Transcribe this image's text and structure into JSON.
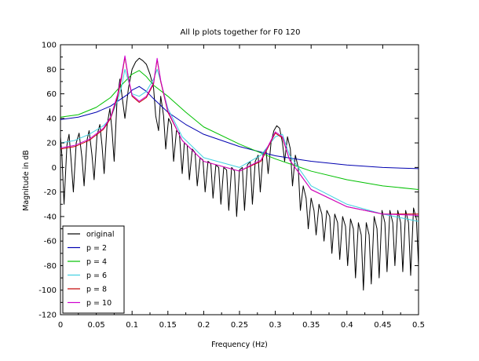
{
  "chart_data": {
    "type": "line",
    "title": "All lp plots together for F0 120",
    "xlabel": "Frequency (Hz)",
    "ylabel": "Magnitude in dB",
    "xlim": [
      0,
      0.5
    ],
    "ylim": [
      -120,
      100
    ],
    "xticks": [
      "0",
      "0.05",
      "0.1",
      "0.15",
      "0.2",
      "0.25",
      "0.3",
      "0.35",
      "0.4",
      "0.45",
      "0.5"
    ],
    "yticks": [
      "100",
      "80",
      "60",
      "40",
      "20",
      "0",
      "-20",
      "-40",
      "-60",
      "-80",
      "-100",
      "-120"
    ],
    "grid": false,
    "legend_position": "bottom-left",
    "series": [
      {
        "name": "original",
        "color": "#000000",
        "points": [
          [
            0,
            25
          ],
          [
            0.002,
            10
          ],
          [
            0.005,
            -30
          ],
          [
            0.009,
            18
          ],
          [
            0.012,
            27
          ],
          [
            0.015,
            5
          ],
          [
            0.018,
            -20
          ],
          [
            0.022,
            20
          ],
          [
            0.026,
            28
          ],
          [
            0.03,
            8
          ],
          [
            0.033,
            -15
          ],
          [
            0.037,
            22
          ],
          [
            0.04,
            30
          ],
          [
            0.044,
            10
          ],
          [
            0.047,
            -10
          ],
          [
            0.051,
            26
          ],
          [
            0.055,
            35
          ],
          [
            0.058,
            18
          ],
          [
            0.061,
            -5
          ],
          [
            0.065,
            34
          ],
          [
            0.069,
            48
          ],
          [
            0.072,
            30
          ],
          [
            0.075,
            5
          ],
          [
            0.079,
            55
          ],
          [
            0.083,
            72
          ],
          [
            0.086,
            58
          ],
          [
            0.09,
            40
          ],
          [
            0.095,
            65
          ],
          [
            0.1,
            80
          ],
          [
            0.105,
            86
          ],
          [
            0.11,
            89
          ],
          [
            0.115,
            87
          ],
          [
            0.12,
            84
          ],
          [
            0.125,
            76
          ],
          [
            0.13,
            65
          ],
          [
            0.133,
            42
          ],
          [
            0.137,
            30
          ],
          [
            0.14,
            58
          ],
          [
            0.144,
            42
          ],
          [
            0.147,
            15
          ],
          [
            0.151,
            40
          ],
          [
            0.155,
            35
          ],
          [
            0.158,
            5
          ],
          [
            0.162,
            30
          ],
          [
            0.166,
            28
          ],
          [
            0.17,
            -5
          ],
          [
            0.173,
            20
          ],
          [
            0.177,
            18
          ],
          [
            0.18,
            -10
          ],
          [
            0.184,
            15
          ],
          [
            0.188,
            12
          ],
          [
            0.191,
            -15
          ],
          [
            0.195,
            8
          ],
          [
            0.199,
            6
          ],
          [
            0.202,
            -20
          ],
          [
            0.206,
            5
          ],
          [
            0.21,
            3
          ],
          [
            0.213,
            -25
          ],
          [
            0.217,
            2
          ],
          [
            0.221,
            0
          ],
          [
            0.224,
            -30
          ],
          [
            0.228,
            0
          ],
          [
            0.232,
            -2
          ],
          [
            0.235,
            -35
          ],
          [
            0.239,
            0
          ],
          [
            0.243,
            -3
          ],
          [
            0.246,
            -40
          ],
          [
            0.25,
            -2
          ],
          [
            0.254,
            0
          ],
          [
            0.257,
            -35
          ],
          [
            0.261,
            2
          ],
          [
            0.265,
            5
          ],
          [
            0.268,
            -30
          ],
          [
            0.272,
            5
          ],
          [
            0.276,
            10
          ],
          [
            0.279,
            -20
          ],
          [
            0.283,
            12
          ],
          [
            0.287,
            15
          ],
          [
            0.29,
            -5
          ],
          [
            0.294,
            20
          ],
          [
            0.298,
            30
          ],
          [
            0.302,
            34
          ],
          [
            0.306,
            32
          ],
          [
            0.31,
            20
          ],
          [
            0.313,
            5
          ],
          [
            0.317,
            25
          ],
          [
            0.321,
            15
          ],
          [
            0.324,
            -15
          ],
          [
            0.328,
            10
          ],
          [
            0.332,
            0
          ],
          [
            0.335,
            -35
          ],
          [
            0.339,
            -15
          ],
          [
            0.343,
            -25
          ],
          [
            0.346,
            -50
          ],
          [
            0.35,
            -25
          ],
          [
            0.354,
            -35
          ],
          [
            0.357,
            -55
          ],
          [
            0.361,
            -30
          ],
          [
            0.365,
            -38
          ],
          [
            0.368,
            -60
          ],
          [
            0.372,
            -35
          ],
          [
            0.376,
            -40
          ],
          [
            0.379,
            -70
          ],
          [
            0.383,
            -38
          ],
          [
            0.387,
            -45
          ],
          [
            0.39,
            -75
          ],
          [
            0.394,
            -40
          ],
          [
            0.398,
            -48
          ],
          [
            0.401,
            -80
          ],
          [
            0.405,
            -42
          ],
          [
            0.409,
            -50
          ],
          [
            0.412,
            -90
          ],
          [
            0.416,
            -45
          ],
          [
            0.42,
            -55
          ],
          [
            0.423,
            -100
          ],
          [
            0.427,
            -45
          ],
          [
            0.431,
            -55
          ],
          [
            0.434,
            -95
          ],
          [
            0.438,
            -40
          ],
          [
            0.442,
            -50
          ],
          [
            0.445,
            -90
          ],
          [
            0.449,
            -35
          ],
          [
            0.453,
            -45
          ],
          [
            0.456,
            -85
          ],
          [
            0.46,
            -35
          ],
          [
            0.464,
            -45
          ],
          [
            0.467,
            -80
          ],
          [
            0.471,
            -35
          ],
          [
            0.475,
            -45
          ],
          [
            0.478,
            -85
          ],
          [
            0.482,
            -35
          ],
          [
            0.486,
            -45
          ],
          [
            0.489,
            -88
          ],
          [
            0.493,
            -33
          ],
          [
            0.497,
            -42
          ],
          [
            0.5,
            -80
          ]
        ]
      },
      {
        "name": "p = 2",
        "color": "#0000b0",
        "points": [
          [
            0,
            39
          ],
          [
            0.025,
            41
          ],
          [
            0.05,
            45
          ],
          [
            0.07,
            50
          ],
          [
            0.085,
            56
          ],
          [
            0.095,
            60
          ],
          [
            0.1,
            63
          ],
          [
            0.11,
            66
          ],
          [
            0.12,
            62
          ],
          [
            0.13,
            56
          ],
          [
            0.15,
            45
          ],
          [
            0.175,
            35
          ],
          [
            0.2,
            27
          ],
          [
            0.25,
            17
          ],
          [
            0.3,
            9.5
          ],
          [
            0.35,
            5
          ],
          [
            0.4,
            2
          ],
          [
            0.45,
            0
          ],
          [
            0.5,
            -1
          ]
        ]
      },
      {
        "name": "p = 4",
        "color": "#00c000",
        "points": [
          [
            0,
            41
          ],
          [
            0.025,
            43
          ],
          [
            0.05,
            49
          ],
          [
            0.07,
            57
          ],
          [
            0.085,
            67
          ],
          [
            0.1,
            76
          ],
          [
            0.11,
            79
          ],
          [
            0.12,
            74
          ],
          [
            0.13,
            67
          ],
          [
            0.15,
            58
          ],
          [
            0.175,
            45
          ],
          [
            0.2,
            33
          ],
          [
            0.25,
            19
          ],
          [
            0.3,
            7
          ],
          [
            0.35,
            -3
          ],
          [
            0.4,
            -10
          ],
          [
            0.45,
            -15
          ],
          [
            0.5,
            -18
          ]
        ]
      },
      {
        "name": "p = 6",
        "color": "#40d0e0",
        "points": [
          [
            0,
            20
          ],
          [
            0.02,
            22
          ],
          [
            0.04,
            27
          ],
          [
            0.06,
            34
          ],
          [
            0.07,
            40
          ],
          [
            0.08,
            55
          ],
          [
            0.085,
            65
          ],
          [
            0.09,
            80
          ],
          [
            0.095,
            70
          ],
          [
            0.1,
            60
          ],
          [
            0.11,
            58
          ],
          [
            0.12,
            62
          ],
          [
            0.13,
            72
          ],
          [
            0.135,
            80
          ],
          [
            0.14,
            70
          ],
          [
            0.15,
            48
          ],
          [
            0.17,
            25
          ],
          [
            0.2,
            8
          ],
          [
            0.25,
            0
          ],
          [
            0.28,
            10
          ],
          [
            0.3,
            25
          ],
          [
            0.31,
            27
          ],
          [
            0.32,
            10
          ],
          [
            0.35,
            -15
          ],
          [
            0.4,
            -30
          ],
          [
            0.45,
            -38
          ],
          [
            0.5,
            -44
          ]
        ]
      },
      {
        "name": "p = 8",
        "color": "#c00000",
        "points": [
          [
            0,
            15
          ],
          [
            0.02,
            17
          ],
          [
            0.04,
            22
          ],
          [
            0.06,
            31
          ],
          [
            0.07,
            40
          ],
          [
            0.08,
            58
          ],
          [
            0.085,
            72
          ],
          [
            0.09,
            90
          ],
          [
            0.095,
            72
          ],
          [
            0.1,
            58
          ],
          [
            0.11,
            53
          ],
          [
            0.12,
            57
          ],
          [
            0.13,
            68
          ],
          [
            0.135,
            88
          ],
          [
            0.14,
            70
          ],
          [
            0.15,
            45
          ],
          [
            0.17,
            22
          ],
          [
            0.2,
            5
          ],
          [
            0.25,
            -3
          ],
          [
            0.28,
            5
          ],
          [
            0.3,
            28
          ],
          [
            0.31,
            24
          ],
          [
            0.32,
            6
          ],
          [
            0.35,
            -18
          ],
          [
            0.4,
            -32
          ],
          [
            0.45,
            -38
          ],
          [
            0.5,
            -38
          ]
        ]
      },
      {
        "name": "p = 10",
        "color": "#d000d0",
        "points": [
          [
            0,
            16
          ],
          [
            0.02,
            18
          ],
          [
            0.04,
            23
          ],
          [
            0.06,
            32
          ],
          [
            0.07,
            41
          ],
          [
            0.08,
            60
          ],
          [
            0.085,
            74
          ],
          [
            0.09,
            91
          ],
          [
            0.095,
            73
          ],
          [
            0.1,
            59
          ],
          [
            0.11,
            54
          ],
          [
            0.12,
            58
          ],
          [
            0.13,
            69
          ],
          [
            0.135,
            89
          ],
          [
            0.14,
            71
          ],
          [
            0.15,
            46
          ],
          [
            0.17,
            22
          ],
          [
            0.2,
            5
          ],
          [
            0.25,
            -3
          ],
          [
            0.28,
            6
          ],
          [
            0.3,
            29
          ],
          [
            0.31,
            25
          ],
          [
            0.32,
            6
          ],
          [
            0.35,
            -18
          ],
          [
            0.4,
            -32
          ],
          [
            0.45,
            -38
          ],
          [
            0.5,
            -39
          ]
        ]
      }
    ]
  }
}
